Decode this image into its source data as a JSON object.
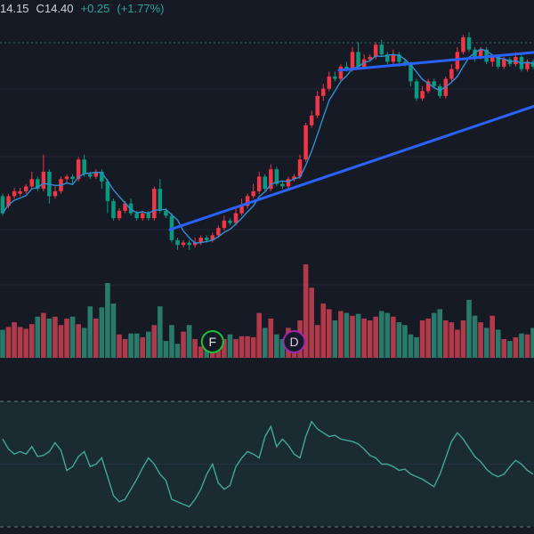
{
  "ohlc": {
    "low": "14.15",
    "close_label": "C",
    "close": "14.40",
    "change": "+0.25",
    "change_pct": "(+1.77%)"
  },
  "colors": {
    "background": "#161a25",
    "up": "#f23645",
    "down": "#089981",
    "vol_up": "#b03a4a",
    "vol_down": "#2a7a6c",
    "ma": "#2e8fd6",
    "trendline": "#2962ff",
    "oscillator": "#3fa89a",
    "osc_fill": "#1a2c32",
    "marker_f": "#1fbf3a",
    "marker_d": "#9c27b0"
  },
  "markers": [
    {
      "label": "F",
      "icon": "earnings-f-icon",
      "bar_index": 36
    },
    {
      "label": "D",
      "icon": "dividend-d-icon",
      "bar_index": 50
    }
  ],
  "chart_data": {
    "type": "candlestick",
    "title": "",
    "series_ohlc": [
      [
        12.95,
        12.6,
        13.0,
        12.55
      ],
      [
        12.75,
        12.95,
        13.0,
        12.7
      ],
      [
        12.95,
        13.05,
        13.12,
        12.9
      ],
      [
        13.0,
        13.05,
        13.12,
        12.95
      ],
      [
        13.05,
        13.15,
        13.2,
        13.0
      ],
      [
        13.15,
        13.3,
        13.45,
        13.1
      ],
      [
        13.3,
        13.1,
        13.35,
        13.05
      ],
      [
        13.1,
        13.45,
        13.8,
        13.05
      ],
      [
        13.45,
        12.95,
        13.5,
        12.8
      ],
      [
        12.95,
        13.05,
        13.15,
        12.9
      ],
      [
        13.05,
        13.3,
        13.35,
        13.0
      ],
      [
        13.3,
        13.35,
        13.4,
        13.2
      ],
      [
        13.35,
        13.3,
        13.4,
        13.2
      ],
      [
        13.3,
        13.7,
        13.75,
        13.25
      ],
      [
        13.7,
        13.4,
        13.8,
        13.35
      ],
      [
        13.4,
        13.35,
        13.45,
        13.3
      ],
      [
        13.35,
        13.45,
        13.5,
        13.3
      ],
      [
        13.45,
        13.25,
        13.5,
        13.1
      ],
      [
        13.25,
        12.85,
        13.3,
        12.6
      ],
      [
        12.85,
        12.5,
        12.9,
        12.45
      ],
      [
        12.5,
        12.65,
        12.7,
        12.45
      ],
      [
        12.65,
        12.8,
        12.85,
        12.6
      ],
      [
        12.8,
        12.6,
        12.9,
        12.55
      ],
      [
        12.6,
        12.5,
        12.65,
        12.45
      ],
      [
        12.5,
        12.6,
        12.65,
        12.45
      ],
      [
        12.6,
        12.5,
        12.65,
        12.45
      ],
      [
        12.5,
        13.1,
        13.15,
        12.45
      ],
      [
        13.1,
        12.65,
        13.3,
        12.6
      ],
      [
        12.65,
        12.55,
        12.7,
        12.5
      ],
      [
        12.55,
        12.05,
        12.6,
        12.0
      ],
      [
        12.05,
        11.95,
        12.1,
        11.85
      ],
      [
        11.95,
        12.0,
        12.05,
        11.9
      ],
      [
        12.0,
        11.95,
        12.05,
        11.85
      ],
      [
        11.95,
        12.0,
        12.1,
        11.9
      ],
      [
        12.0,
        12.1,
        12.15,
        11.95
      ],
      [
        12.1,
        12.05,
        12.15,
        12.0
      ],
      [
        12.05,
        12.15,
        12.2,
        12.0
      ],
      [
        12.15,
        12.3,
        12.35,
        12.1
      ],
      [
        12.3,
        12.45,
        12.55,
        12.25
      ],
      [
        12.45,
        12.4,
        12.5,
        12.35
      ],
      [
        12.4,
        12.6,
        12.7,
        12.35
      ],
      [
        12.6,
        12.75,
        12.9,
        12.55
      ],
      [
        12.75,
        12.95,
        13.0,
        12.7
      ],
      [
        12.95,
        13.05,
        13.2,
        12.9
      ],
      [
        13.05,
        13.35,
        13.45,
        13.0
      ],
      [
        13.35,
        13.1,
        13.4,
        13.05
      ],
      [
        13.1,
        13.5,
        13.6,
        13.05
      ],
      [
        13.5,
        13.2,
        13.55,
        13.15
      ],
      [
        13.2,
        13.15,
        13.25,
        13.1
      ],
      [
        13.15,
        13.3,
        13.35,
        13.1
      ],
      [
        13.3,
        13.35,
        13.4,
        13.25
      ],
      [
        13.35,
        13.7,
        13.8,
        13.3
      ],
      [
        13.7,
        14.4,
        14.45,
        13.65
      ],
      [
        14.4,
        14.6,
        14.7,
        14.35
      ],
      [
        14.6,
        15.0,
        15.1,
        14.55
      ],
      [
        15.0,
        15.15,
        15.25,
        14.9
      ],
      [
        15.15,
        15.4,
        15.5,
        15.1
      ],
      [
        15.4,
        15.35,
        15.5,
        15.3
      ],
      [
        15.35,
        15.6,
        15.65,
        15.3
      ],
      [
        15.6,
        15.55,
        15.7,
        15.5
      ],
      [
        15.55,
        15.9,
        16.0,
        15.5
      ],
      [
        15.9,
        15.6,
        16.1,
        15.55
      ],
      [
        15.6,
        15.75,
        15.85,
        15.55
      ],
      [
        15.75,
        15.8,
        15.85,
        15.7
      ],
      [
        15.8,
        16.05,
        16.1,
        15.75
      ],
      [
        16.05,
        15.85,
        16.15,
        15.8
      ],
      [
        15.85,
        15.7,
        15.9,
        15.65
      ],
      [
        15.7,
        15.85,
        15.95,
        15.65
      ],
      [
        15.85,
        15.7,
        15.9,
        15.6
      ],
      [
        15.7,
        15.65,
        15.75,
        15.6
      ],
      [
        15.65,
        15.3,
        15.7,
        15.2
      ],
      [
        15.3,
        14.95,
        15.35,
        14.9
      ],
      [
        14.95,
        15.1,
        15.2,
        14.9
      ],
      [
        15.1,
        15.3,
        15.35,
        15.05
      ],
      [
        15.3,
        15.2,
        15.35,
        15.15
      ],
      [
        15.2,
        15.0,
        15.25,
        14.95
      ],
      [
        15.0,
        15.35,
        15.4,
        14.95
      ],
      [
        15.35,
        15.55,
        15.65,
        15.3
      ],
      [
        15.55,
        15.9,
        16.0,
        15.5
      ],
      [
        15.9,
        16.2,
        16.25,
        15.85
      ],
      [
        16.2,
        15.95,
        16.3,
        15.9
      ],
      [
        15.95,
        15.8,
        16.0,
        15.7
      ],
      [
        15.8,
        15.95,
        16.0,
        15.75
      ],
      [
        15.95,
        15.7,
        16.0,
        15.65
      ],
      [
        15.7,
        15.8,
        15.85,
        15.6
      ],
      [
        15.8,
        15.6,
        15.85,
        15.55
      ],
      [
        15.6,
        15.75,
        15.8,
        15.55
      ],
      [
        15.75,
        15.65,
        15.8,
        15.6
      ],
      [
        15.65,
        15.8,
        15.9,
        15.6
      ],
      [
        15.8,
        15.55,
        15.85,
        15.5
      ],
      [
        15.55,
        15.7,
        15.75,
        15.5
      ],
      [
        15.7,
        15.6,
        15.75,
        15.55
      ]
    ],
    "volume": [
      30,
      33,
      38,
      33,
      31,
      36,
      44,
      48,
      42,
      44,
      35,
      42,
      44,
      36,
      32,
      55,
      42,
      54,
      80,
      58,
      25,
      20,
      26,
      26,
      22,
      28,
      35,
      55,
      18,
      35,
      15,
      28,
      35,
      20,
      12,
      22,
      18,
      22,
      20,
      25,
      20,
      23,
      23,
      22,
      48,
      32,
      42,
      25,
      20,
      32,
      22,
      40,
      100,
      75,
      35,
      58,
      52,
      40,
      50,
      48,
      45,
      47,
      42,
      40,
      44,
      50,
      48,
      44,
      38,
      35,
      25,
      22,
      40,
      42,
      48,
      52,
      40,
      38,
      30,
      40,
      62,
      45,
      38,
      32,
      45,
      30,
      20,
      18,
      22,
      26,
      25,
      32
    ],
    "oscillator": [
      70,
      62,
      58,
      60,
      58,
      64,
      56,
      57,
      60,
      67,
      61,
      45,
      48,
      56,
      60,
      48,
      50,
      55,
      40,
      25,
      20,
      22,
      30,
      38,
      47,
      55,
      50,
      42,
      37,
      22,
      20,
      18,
      16,
      22,
      30,
      42,
      50,
      35,
      30,
      33,
      48,
      55,
      60,
      58,
      55,
      72,
      80,
      64,
      70,
      65,
      58,
      55,
      72,
      84,
      78,
      75,
      72,
      73,
      70,
      69,
      68,
      66,
      62,
      57,
      55,
      50,
      50,
      48,
      45,
      46,
      42,
      40,
      38,
      35,
      32,
      42,
      55,
      68,
      75,
      70,
      63,
      56,
      52,
      46,
      42,
      40,
      42,
      48,
      53,
      50,
      45,
      42
    ],
    "ma_period": 5,
    "ylim": [
      11.5,
      16.6
    ]
  }
}
